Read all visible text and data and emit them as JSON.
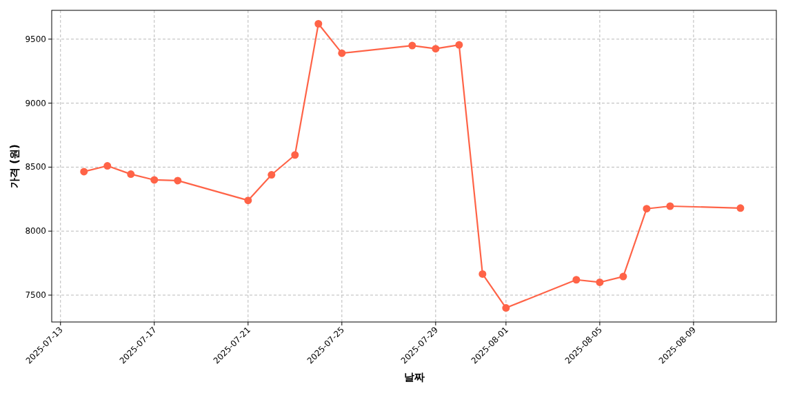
{
  "chart_data": {
    "type": "line",
    "xlabel": "날짜",
    "ylabel": "가격 (원)",
    "x": [
      "2025-07-14",
      "2025-07-15",
      "2025-07-16",
      "2025-07-17",
      "2025-07-18",
      "2025-07-21",
      "2025-07-22",
      "2025-07-23",
      "2025-07-24",
      "2025-07-25",
      "2025-07-28",
      "2025-07-29",
      "2025-07-30",
      "2025-07-31",
      "2025-08-01",
      "2025-08-04",
      "2025-08-05",
      "2025-08-06",
      "2025-08-07",
      "2025-08-08",
      "2025-08-11"
    ],
    "series": [
      {
        "color": "#ff6347",
        "values": [
          8465,
          8510,
          8445,
          8400,
          8395,
          8240,
          8440,
          8595,
          9620,
          9390,
          9450,
          9425,
          9455,
          7665,
          7400,
          7620,
          7600,
          7645,
          8175,
          8195,
          8180
        ]
      }
    ],
    "xlim": [
      "2025-07-12T15:00",
      "2025-08-12T12:45"
    ],
    "xticks": [
      {
        "value": "2025-07-13",
        "label": "2025-07-13"
      },
      {
        "value": "2025-07-17",
        "label": "2025-07-17"
      },
      {
        "value": "2025-07-21",
        "label": "2025-07-21"
      },
      {
        "value": "2025-07-25",
        "label": "2025-07-25"
      },
      {
        "value": "2025-07-29",
        "label": "2025-07-29"
      },
      {
        "value": "2025-08-01",
        "label": "2025-08-01"
      },
      {
        "value": "2025-08-05",
        "label": "2025-08-05"
      },
      {
        "value": "2025-08-09",
        "label": "2025-08-09"
      }
    ],
    "ylim": [
      7290,
      9725
    ],
    "yticks": [
      7500,
      8000,
      8500,
      9000,
      9500
    ],
    "grid": true,
    "marker": "circle",
    "line_style": "solid"
  }
}
